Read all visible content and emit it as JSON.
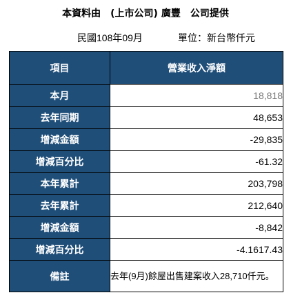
{
  "header": {
    "title": "本資料由　(上市公司) 廣豐　公司提供",
    "period": "民國108年09月",
    "unit": "單位：新台幣仟元"
  },
  "table": {
    "head_label": "項目",
    "head_value": "營業收入淨額",
    "rows": [
      {
        "label": "本月",
        "value": "18,818"
      },
      {
        "label": "去年同期",
        "value": "48,653"
      },
      {
        "label": "增減金額",
        "value": "-29,835"
      },
      {
        "label": "增減百分比",
        "value": "-61.32"
      },
      {
        "label": "本年累計",
        "value": "203,798"
      },
      {
        "label": "去年累計",
        "value": "212,640"
      },
      {
        "label": "增減金額",
        "value": "-8,842"
      },
      {
        "label": "增減百分比",
        "value": "-4.1617.43"
      }
    ],
    "note_label": "備註",
    "note_text": "去年(9月)餘屋出售建案收入28,710仟元。"
  },
  "colors": {
    "header_bg": "#1f4e79",
    "header_text": "#ffffff",
    "muted_value": "#777777"
  }
}
